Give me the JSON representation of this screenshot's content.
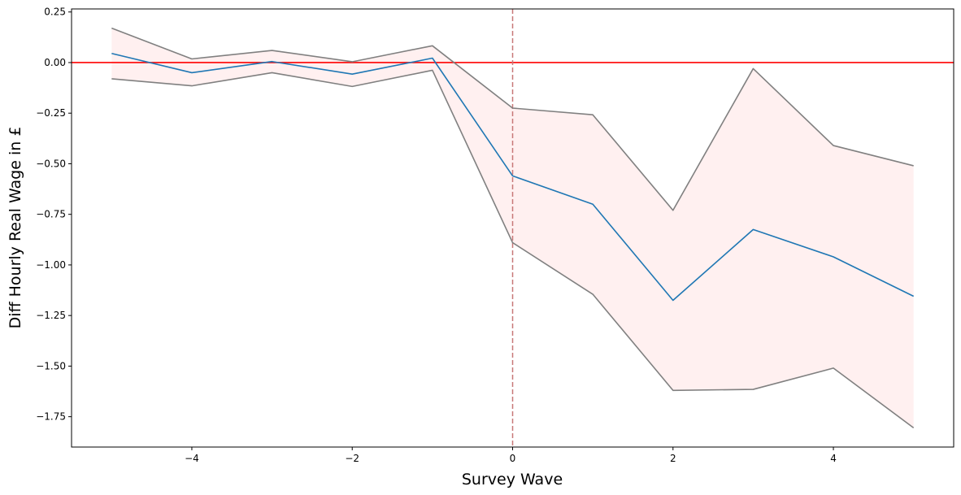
{
  "chart_data": {
    "type": "line",
    "title": "",
    "xlabel": "Survey Wave",
    "ylabel": "Diff Hourly Real Wage in £",
    "xlim": [
      -5.5,
      5.5
    ],
    "ylim": [
      -1.9,
      0.265
    ],
    "x": [
      -5,
      -4,
      -3,
      -2,
      -1,
      0,
      1,
      2,
      3,
      4,
      5
    ],
    "series": [
      {
        "role": "estimate",
        "color": "#1f77b4",
        "values": [
          0.045,
          -0.05,
          0.005,
          -0.057,
          0.022,
          -0.56,
          -0.7,
          -1.175,
          -0.825,
          -0.96,
          -1.155
        ]
      },
      {
        "role": "upper-ci",
        "color": "#808080",
        "values": [
          0.17,
          0.018,
          0.06,
          0.004,
          0.083,
          -0.225,
          -0.258,
          -0.73,
          -0.03,
          -0.41,
          -0.51
        ]
      },
      {
        "role": "lower-ci",
        "color": "#808080",
        "values": [
          -0.08,
          -0.115,
          -0.05,
          -0.118,
          -0.038,
          -0.89,
          -1.145,
          -1.62,
          -1.615,
          -1.51,
          -1.805
        ]
      }
    ],
    "ci_fill": "#fff0f0",
    "reference_lines": [
      {
        "orientation": "horizontal",
        "value": 0,
        "color": "#ff0000",
        "style": "solid"
      },
      {
        "orientation": "vertical",
        "value": 0,
        "color": "#c87878",
        "style": "dashed"
      }
    ],
    "xticks": [
      -4,
      -2,
      0,
      2,
      4
    ],
    "xtick_labels": [
      "−4",
      "−2",
      "0",
      "2",
      "4"
    ],
    "yticks": [
      0.25,
      0,
      -0.25,
      -0.5,
      -0.75,
      -1.0,
      -1.25,
      -1.5,
      -1.75
    ],
    "ytick_labels": [
      "0.25",
      "0.00",
      "−0.25",
      "−0.50",
      "−0.75",
      "−1.00",
      "−1.25",
      "−1.50",
      "−1.75"
    ],
    "grid": false,
    "legend": "none"
  }
}
